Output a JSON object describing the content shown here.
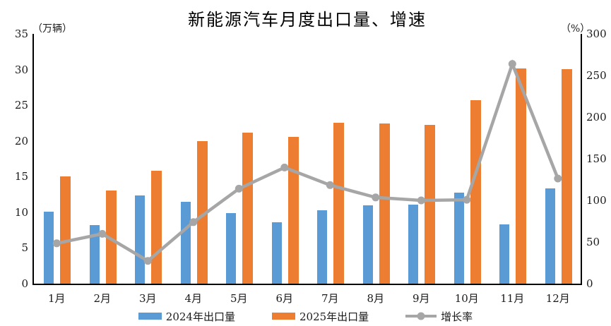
{
  "chart_data": {
    "type": "combo-bar-line",
    "title": "新能源汽车月度出口量、增速",
    "left_axis_unit": "（万辆）",
    "right_axis_unit": "（%）",
    "left_ylim": [
      0,
      35
    ],
    "right_ylim": [
      0,
      300
    ],
    "left_ticks": [
      0,
      5,
      10,
      15,
      20,
      25,
      30,
      35
    ],
    "right_ticks": [
      0,
      50,
      100,
      150,
      200,
      250,
      300
    ],
    "grid": false,
    "legend_position": "bottom",
    "categories": [
      "1月",
      "2月",
      "3月",
      "4月",
      "5月",
      "6月",
      "7月",
      "8月",
      "9月",
      "10月",
      "11月",
      "12月"
    ],
    "series": [
      {
        "name": "2024年出口量",
        "type": "bar",
        "axis": "left",
        "color": "#5B9BD5",
        "values": [
          10.1,
          8.2,
          12.4,
          11.5,
          9.9,
          8.6,
          10.3,
          11.0,
          11.1,
          12.8,
          8.3,
          13.3
        ]
      },
      {
        "name": "2025年出口量",
        "type": "bar",
        "axis": "left",
        "color": "#ED7D31",
        "values": [
          15.0,
          13.1,
          15.8,
          20.0,
          21.2,
          20.6,
          22.5,
          22.4,
          22.2,
          25.7,
          30.2,
          30.1
        ]
      },
      {
        "name": "增长率",
        "type": "line",
        "axis": "right",
        "color": "#A6A6A6",
        "values": [
          48.5,
          59.8,
          27.4,
          73.9,
          114.1,
          139.5,
          118.4,
          103.6,
          100.0,
          100.8,
          263.9,
          126.3
        ]
      }
    ],
    "axis_color": "#000000"
  }
}
